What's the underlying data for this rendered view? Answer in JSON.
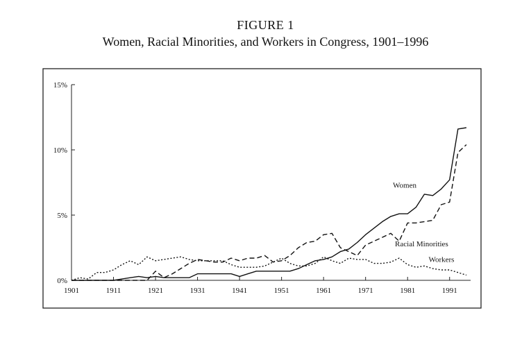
{
  "figure": {
    "label": "FIGURE 1",
    "title": "Women, Racial Minorities, and Workers in Congress, 1901–1996"
  },
  "chart_data": {
    "type": "line",
    "title": "Women, Racial Minorities, and Workers in Congress, 1901–1996",
    "xlabel": "",
    "ylabel": "",
    "xlim": [
      1901,
      1996
    ],
    "ylim": [
      0,
      15
    ],
    "x_ticks": [
      1901,
      1911,
      1921,
      1931,
      1941,
      1951,
      1961,
      1971,
      1981,
      1991
    ],
    "x_tick_labels": [
      "1901",
      "1911",
      "1921",
      "1931",
      "1941",
      "1951",
      "1961",
      "1971",
      "1981",
      "1991"
    ],
    "y_ticks": [
      0,
      5,
      10,
      15
    ],
    "y_tick_labels": [
      "0%",
      "5%",
      "10%",
      "15%"
    ],
    "grid": false,
    "series": [
      {
        "name": "Women",
        "style": "solid",
        "x": [
          1901,
          1911,
          1913,
          1915,
          1917,
          1919,
          1921,
          1923,
          1925,
          1927,
          1929,
          1931,
          1933,
          1935,
          1937,
          1939,
          1941,
          1943,
          1945,
          1947,
          1949,
          1951,
          1953,
          1955,
          1957,
          1959,
          1961,
          1963,
          1965,
          1967,
          1969,
          1971,
          1973,
          1975,
          1977,
          1979,
          1981,
          1983,
          1985,
          1987,
          1989,
          1991,
          1993,
          1995
        ],
        "values": [
          0,
          0,
          0.1,
          0.2,
          0.3,
          0.2,
          0.3,
          0.2,
          0.2,
          0.2,
          0.2,
          0.5,
          0.5,
          0.5,
          0.5,
          0.5,
          0.3,
          0.5,
          0.7,
          0.7,
          0.7,
          0.7,
          0.7,
          0.9,
          1.2,
          1.5,
          1.6,
          1.8,
          2.2,
          2.4,
          2.9,
          3.5,
          4.0,
          4.5,
          4.9,
          5.1,
          5.1,
          5.6,
          6.6,
          6.5,
          7.0,
          7.7,
          11.6,
          11.7
        ]
      },
      {
        "name": "Racial Minorities",
        "style": "dashed",
        "x": [
          1901,
          1911,
          1915,
          1917,
          1919,
          1921,
          1923,
          1925,
          1927,
          1929,
          1931,
          1933,
          1935,
          1937,
          1939,
          1941,
          1943,
          1945,
          1947,
          1949,
          1951,
          1953,
          1955,
          1957,
          1959,
          1961,
          1963,
          1965,
          1967,
          1969,
          1971,
          1973,
          1975,
          1977,
          1979,
          1981,
          1983,
          1985,
          1987,
          1989,
          1991,
          1993,
          1995
        ],
        "values": [
          0,
          0,
          0,
          0,
          0,
          0.7,
          0.2,
          0.5,
          0.9,
          1.3,
          1.6,
          1.5,
          1.4,
          1.4,
          1.7,
          1.5,
          1.7,
          1.7,
          1.9,
          1.4,
          1.5,
          1.9,
          2.5,
          2.9,
          3.0,
          3.5,
          3.6,
          2.5,
          2.2,
          1.9,
          2.7,
          3.0,
          3.3,
          3.6,
          3.0,
          4.4,
          4.4,
          4.5,
          4.6,
          5.8,
          6.0,
          9.8,
          10.4
        ]
      },
      {
        "name": "Workers",
        "style": "dotted",
        "x": [
          1901,
          1903,
          1905,
          1907,
          1909,
          1911,
          1913,
          1915,
          1917,
          1919,
          1921,
          1923,
          1925,
          1927,
          1929,
          1931,
          1933,
          1935,
          1937,
          1939,
          1941,
          1943,
          1945,
          1947,
          1949,
          1951,
          1953,
          1955,
          1957,
          1959,
          1961,
          1963,
          1965,
          1967,
          1969,
          1971,
          1973,
          1975,
          1977,
          1979,
          1981,
          1983,
          1985,
          1987,
          1989,
          1991,
          1993,
          1995
        ],
        "values": [
          0,
          0.2,
          0.1,
          0.6,
          0.6,
          0.8,
          1.2,
          1.5,
          1.2,
          1.8,
          1.5,
          1.6,
          1.7,
          1.8,
          1.6,
          1.5,
          1.5,
          1.5,
          1.5,
          1.2,
          1.0,
          1.0,
          1.0,
          1.1,
          1.4,
          1.7,
          1.3,
          1.1,
          1.1,
          1.3,
          1.8,
          1.5,
          1.3,
          1.7,
          1.6,
          1.6,
          1.3,
          1.3,
          1.4,
          1.7,
          1.2,
          1.0,
          1.1,
          0.9,
          0.8,
          0.8,
          0.6,
          0.4
        ]
      }
    ],
    "series_labels": [
      "Women",
      "Racial Minorities",
      "Workers"
    ]
  }
}
